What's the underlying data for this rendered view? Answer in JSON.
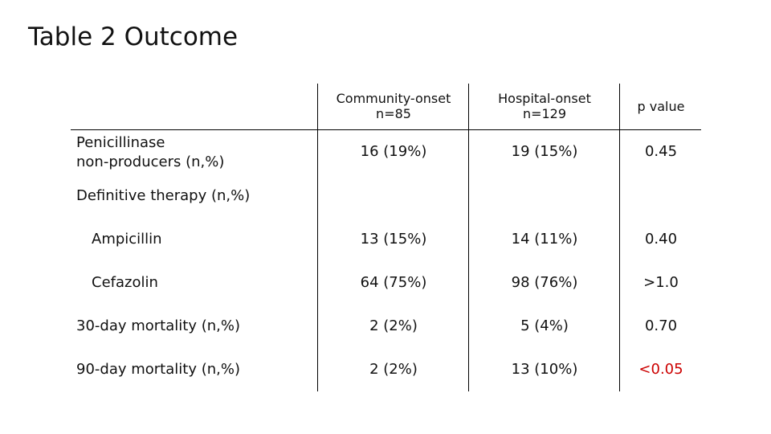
{
  "title": "Table 2 Outcome",
  "headers": {
    "community": [
      "Community-onset",
      "n=85"
    ],
    "hospital": [
      "Hospital-onset",
      "n=129"
    ],
    "pvalue": "p value"
  },
  "rows": [
    {
      "label": [
        "Penicillinase",
        "non-producers (n,%)"
      ],
      "community": "16 (19%)",
      "hospital": "19 (15%)",
      "p": "0.45"
    },
    {
      "label": [
        "Definitive therapy (n,%)"
      ],
      "community": "",
      "hospital": "",
      "p": ""
    },
    {
      "label": [
        "Ampicillin"
      ],
      "community": "13 (15%)",
      "hospital": "14 (11%)",
      "p": "0.40"
    },
    {
      "label": [
        "Cefazolin"
      ],
      "community": "64 (75%)",
      "hospital": "98 (76%)",
      "p": ">1.0"
    },
    {
      "label": [
        "30-day mortality (n,%)"
      ],
      "community": "2 (2%)",
      "hospital": "5 (4%)",
      "p": "0.70"
    },
    {
      "label": [
        "90-day mortality (n,%)"
      ],
      "community": "2 (2%)",
      "hospital": "13 (10%)",
      "p": "<0.05"
    }
  ],
  "colors": {
    "highlight": "#cc0000"
  }
}
